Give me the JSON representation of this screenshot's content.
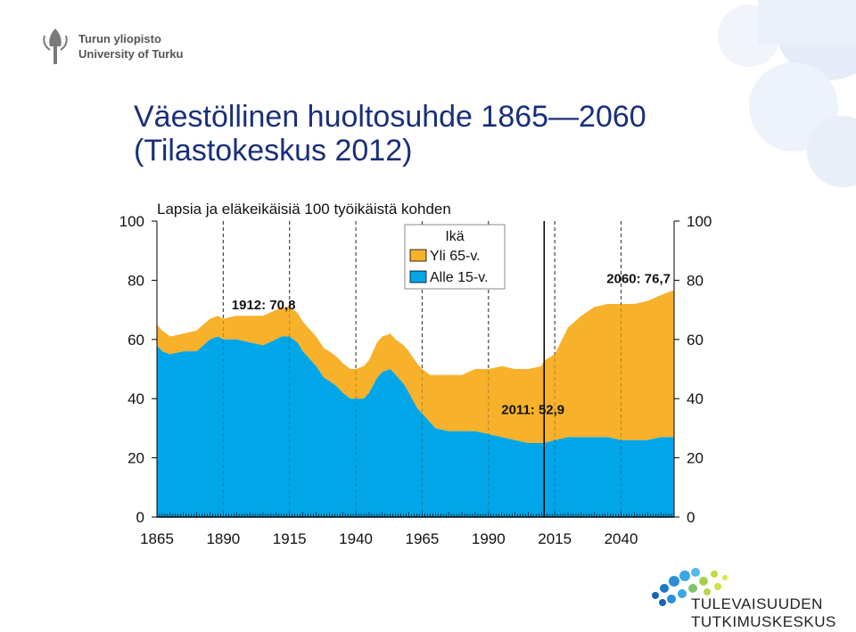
{
  "slide": {
    "title_line1": "Väestöllinen huoltosuhde 1865—2060",
    "title_line2": "(Tilastokeskus 2012)"
  },
  "logos": {
    "university_line1": "Turun yliopisto",
    "university_line2": "University of Turku",
    "center_line1": "TULEVAISUUDEN",
    "center_line2": "TUTKIMUSKESKUS"
  },
  "colors": {
    "over65": "#f7b12a",
    "under15": "#00a6e8",
    "title": "#1a2f7a",
    "deco": "#e8eef8"
  },
  "chart_data": {
    "type": "area",
    "title": "Lapsia ja eläkeikäisiä 100 työikäistä kohden",
    "x_ticks": [
      1865,
      1890,
      1915,
      1940,
      1965,
      1990,
      2015,
      2040
    ],
    "y_ticks": [
      0,
      20,
      40,
      60,
      80,
      100
    ],
    "xlim": [
      1865,
      2060
    ],
    "ylim": [
      0,
      100
    ],
    "stacked": true,
    "legend_title": "Ikä",
    "legend_position": "top-center",
    "grid": "vertical-dashed",
    "series": [
      {
        "name": "Alle 15-v.",
        "color": "#00a6e8",
        "x": [
          1865,
          1867,
          1870,
          1875,
          1880,
          1885,
          1888,
          1890,
          1895,
          1900,
          1905,
          1910,
          1912,
          1915,
          1918,
          1920,
          1925,
          1928,
          1930,
          1933,
          1935,
          1938,
          1940,
          1943,
          1945,
          1948,
          1950,
          1953,
          1955,
          1958,
          1960,
          1963,
          1965,
          1968,
          1970,
          1975,
          1980,
          1985,
          1990,
          1995,
          2000,
          2005,
          2010,
          2011,
          2015,
          2020,
          2025,
          2030,
          2035,
          2040,
          2045,
          2050,
          2055,
          2060
        ],
        "values": [
          58,
          56,
          55,
          56,
          56,
          60,
          61,
          60,
          60,
          59,
          58,
          60,
          61,
          61,
          59,
          56,
          51,
          47,
          46,
          44,
          42,
          40,
          40,
          40,
          42,
          47,
          49,
          50,
          48,
          45,
          42,
          37,
          35,
          32,
          30,
          29,
          29,
          29,
          28,
          27,
          26,
          25,
          25,
          25,
          26,
          27,
          27,
          27,
          27,
          26,
          26,
          26,
          27,
          27
        ]
      },
      {
        "name": "Yli 65-v.",
        "color": "#f7b12a",
        "x": [
          1865,
          1867,
          1870,
          1875,
          1880,
          1885,
          1888,
          1890,
          1895,
          1900,
          1905,
          1910,
          1912,
          1915,
          1918,
          1920,
          1925,
          1928,
          1930,
          1933,
          1935,
          1938,
          1940,
          1943,
          1945,
          1948,
          1950,
          1953,
          1955,
          1958,
          1960,
          1963,
          1965,
          1968,
          1970,
          1975,
          1980,
          1985,
          1990,
          1995,
          2000,
          2005,
          2010,
          2011,
          2015,
          2020,
          2025,
          2030,
          2035,
          2040,
          2045,
          2050,
          2055,
          2060
        ],
        "values": [
          7,
          7,
          6,
          6,
          7,
          7,
          7,
          7,
          8,
          9,
          10,
          10,
          9.8,
          10,
          10,
          10,
          10,
          10,
          10,
          10,
          10,
          10,
          10,
          11,
          11,
          12,
          12,
          12,
          12,
          13,
          14,
          15,
          15,
          16,
          18,
          19,
          19,
          21,
          22,
          24,
          24,
          25,
          26,
          27.9,
          29,
          37,
          41,
          44,
          45,
          46,
          46,
          47,
          48,
          49.7
        ]
      }
    ],
    "annotations": [
      {
        "text": "1912: 70,8",
        "x": 1912,
        "y": 70.8
      },
      {
        "text": "2011: 52,9",
        "x": 2011,
        "y": 52.9
      },
      {
        "text": "2060: 76,7",
        "x": 2060,
        "y": 76.7
      }
    ],
    "marker_line_x": 2011
  }
}
